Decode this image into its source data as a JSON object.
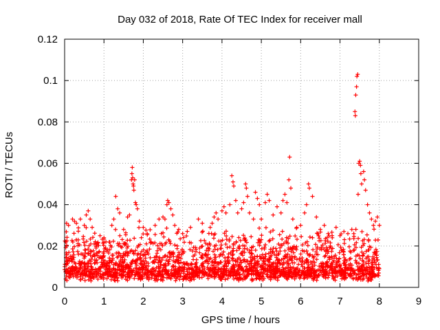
{
  "chart_data": {
    "type": "scatter",
    "title": "Day 032 of 2018, Rate Of TEC Index for receiver mall",
    "xlabel": "GPS time / hours",
    "ylabel": "ROTI / TECUs",
    "xlim": [
      0,
      9
    ],
    "ylim": [
      0,
      0.12
    ],
    "xticks": [
      "0",
      "1",
      "2",
      "3",
      "4",
      "5",
      "6",
      "7",
      "8",
      "9"
    ],
    "yticks": [
      "0",
      "0.02",
      "0.04",
      "0.06",
      "0.08",
      "0.1",
      "0.12"
    ],
    "grid": true,
    "marker": "+",
    "series_color": "#ff0000",
    "data_range_hours": [
      0,
      8
    ],
    "baseline_range": [
      0.005,
      0.03
    ],
    "series": [
      {
        "name": "ROTI",
        "points": [
          [
            0.05,
            0.031
          ],
          [
            0.1,
            0.03
          ],
          [
            0.2,
            0.033
          ],
          [
            0.25,
            0.032
          ],
          [
            0.3,
            0.031
          ],
          [
            0.4,
            0.033
          ],
          [
            0.5,
            0.03
          ],
          [
            0.55,
            0.035
          ],
          [
            0.6,
            0.037
          ],
          [
            0.65,
            0.033
          ],
          [
            0.7,
            0.029
          ],
          [
            0.75,
            0.021
          ],
          [
            0.8,
            0.019
          ],
          [
            0.9,
            0.025
          ],
          [
            1.0,
            0.024
          ],
          [
            1.05,
            0.022
          ],
          [
            1.2,
            0.03
          ],
          [
            1.25,
            0.033
          ],
          [
            1.3,
            0.044
          ],
          [
            1.35,
            0.038
          ],
          [
            1.4,
            0.036
          ],
          [
            1.5,
            0.028
          ],
          [
            1.6,
            0.034
          ],
          [
            1.65,
            0.035
          ],
          [
            1.7,
            0.052
          ],
          [
            1.71,
            0.055
          ],
          [
            1.72,
            0.058
          ],
          [
            1.73,
            0.053
          ],
          [
            1.74,
            0.05
          ],
          [
            1.75,
            0.049
          ],
          [
            1.76,
            0.047
          ],
          [
            1.78,
            0.052
          ],
          [
            1.8,
            0.041
          ],
          [
            1.82,
            0.04
          ],
          [
            1.85,
            0.038
          ],
          [
            1.9,
            0.032
          ],
          [
            2.0,
            0.029
          ],
          [
            2.1,
            0.026
          ],
          [
            2.3,
            0.03
          ],
          [
            2.4,
            0.033
          ],
          [
            2.5,
            0.034
          ],
          [
            2.55,
            0.033
          ],
          [
            2.6,
            0.04
          ],
          [
            2.62,
            0.042
          ],
          [
            2.65,
            0.041
          ],
          [
            2.7,
            0.038
          ],
          [
            2.75,
            0.035
          ],
          [
            2.8,
            0.03
          ],
          [
            2.9,
            0.028
          ],
          [
            3.0,
            0.026
          ],
          [
            3.2,
            0.029
          ],
          [
            3.4,
            0.033
          ],
          [
            3.5,
            0.031
          ],
          [
            3.7,
            0.029
          ],
          [
            3.75,
            0.031
          ],
          [
            3.8,
            0.034
          ],
          [
            3.85,
            0.036
          ],
          [
            3.9,
            0.033
          ],
          [
            4.0,
            0.037
          ],
          [
            4.05,
            0.039
          ],
          [
            4.1,
            0.036
          ],
          [
            4.2,
            0.04
          ],
          [
            4.25,
            0.054
          ],
          [
            4.28,
            0.051
          ],
          [
            4.3,
            0.049
          ],
          [
            4.35,
            0.042
          ],
          [
            4.4,
            0.036
          ],
          [
            4.5,
            0.038
          ],
          [
            4.55,
            0.041
          ],
          [
            4.6,
            0.05
          ],
          [
            4.62,
            0.048
          ],
          [
            4.65,
            0.044
          ],
          [
            4.7,
            0.036
          ],
          [
            4.8,
            0.033
          ],
          [
            4.85,
            0.046
          ],
          [
            4.9,
            0.043
          ],
          [
            4.95,
            0.04
          ],
          [
            5.0,
            0.033
          ],
          [
            5.1,
            0.041
          ],
          [
            5.15,
            0.045
          ],
          [
            5.2,
            0.042
          ],
          [
            5.3,
            0.035
          ],
          [
            5.4,
            0.039
          ],
          [
            5.5,
            0.036
          ],
          [
            5.55,
            0.042
          ],
          [
            5.6,
            0.045
          ],
          [
            5.65,
            0.041
          ],
          [
            5.7,
            0.052
          ],
          [
            5.72,
            0.063
          ],
          [
            5.75,
            0.048
          ],
          [
            5.8,
            0.033
          ],
          [
            5.9,
            0.029
          ],
          [
            6.0,
            0.03
          ],
          [
            6.1,
            0.036
          ],
          [
            6.15,
            0.04
          ],
          [
            6.2,
            0.05
          ],
          [
            6.22,
            0.048
          ],
          [
            6.3,
            0.044
          ],
          [
            6.4,
            0.034
          ],
          [
            6.5,
            0.028
          ],
          [
            6.6,
            0.03
          ],
          [
            6.7,
            0.026
          ],
          [
            6.8,
            0.025
          ],
          [
            6.9,
            0.029
          ],
          [
            7.0,
            0.025
          ],
          [
            7.1,
            0.027
          ],
          [
            7.2,
            0.026
          ],
          [
            7.3,
            0.028
          ],
          [
            7.35,
            0.026
          ],
          [
            7.38,
            0.085
          ],
          [
            7.39,
            0.083
          ],
          [
            7.4,
            0.093
          ],
          [
            7.42,
            0.097
          ],
          [
            7.43,
            0.102
          ],
          [
            7.45,
            0.103
          ],
          [
            7.46,
            0.045
          ],
          [
            7.48,
            0.06
          ],
          [
            7.5,
            0.061
          ],
          [
            7.52,
            0.059
          ],
          [
            7.53,
            0.055
          ],
          [
            7.55,
            0.05
          ],
          [
            7.6,
            0.056
          ],
          [
            7.62,
            0.052
          ],
          [
            7.65,
            0.047
          ],
          [
            7.7,
            0.04
          ],
          [
            7.75,
            0.036
          ],
          [
            7.8,
            0.033
          ],
          [
            7.85,
            0.03
          ],
          [
            7.9,
            0.032
          ],
          [
            7.95,
            0.034
          ],
          [
            8.0,
            0.03
          ]
        ]
      }
    ]
  }
}
